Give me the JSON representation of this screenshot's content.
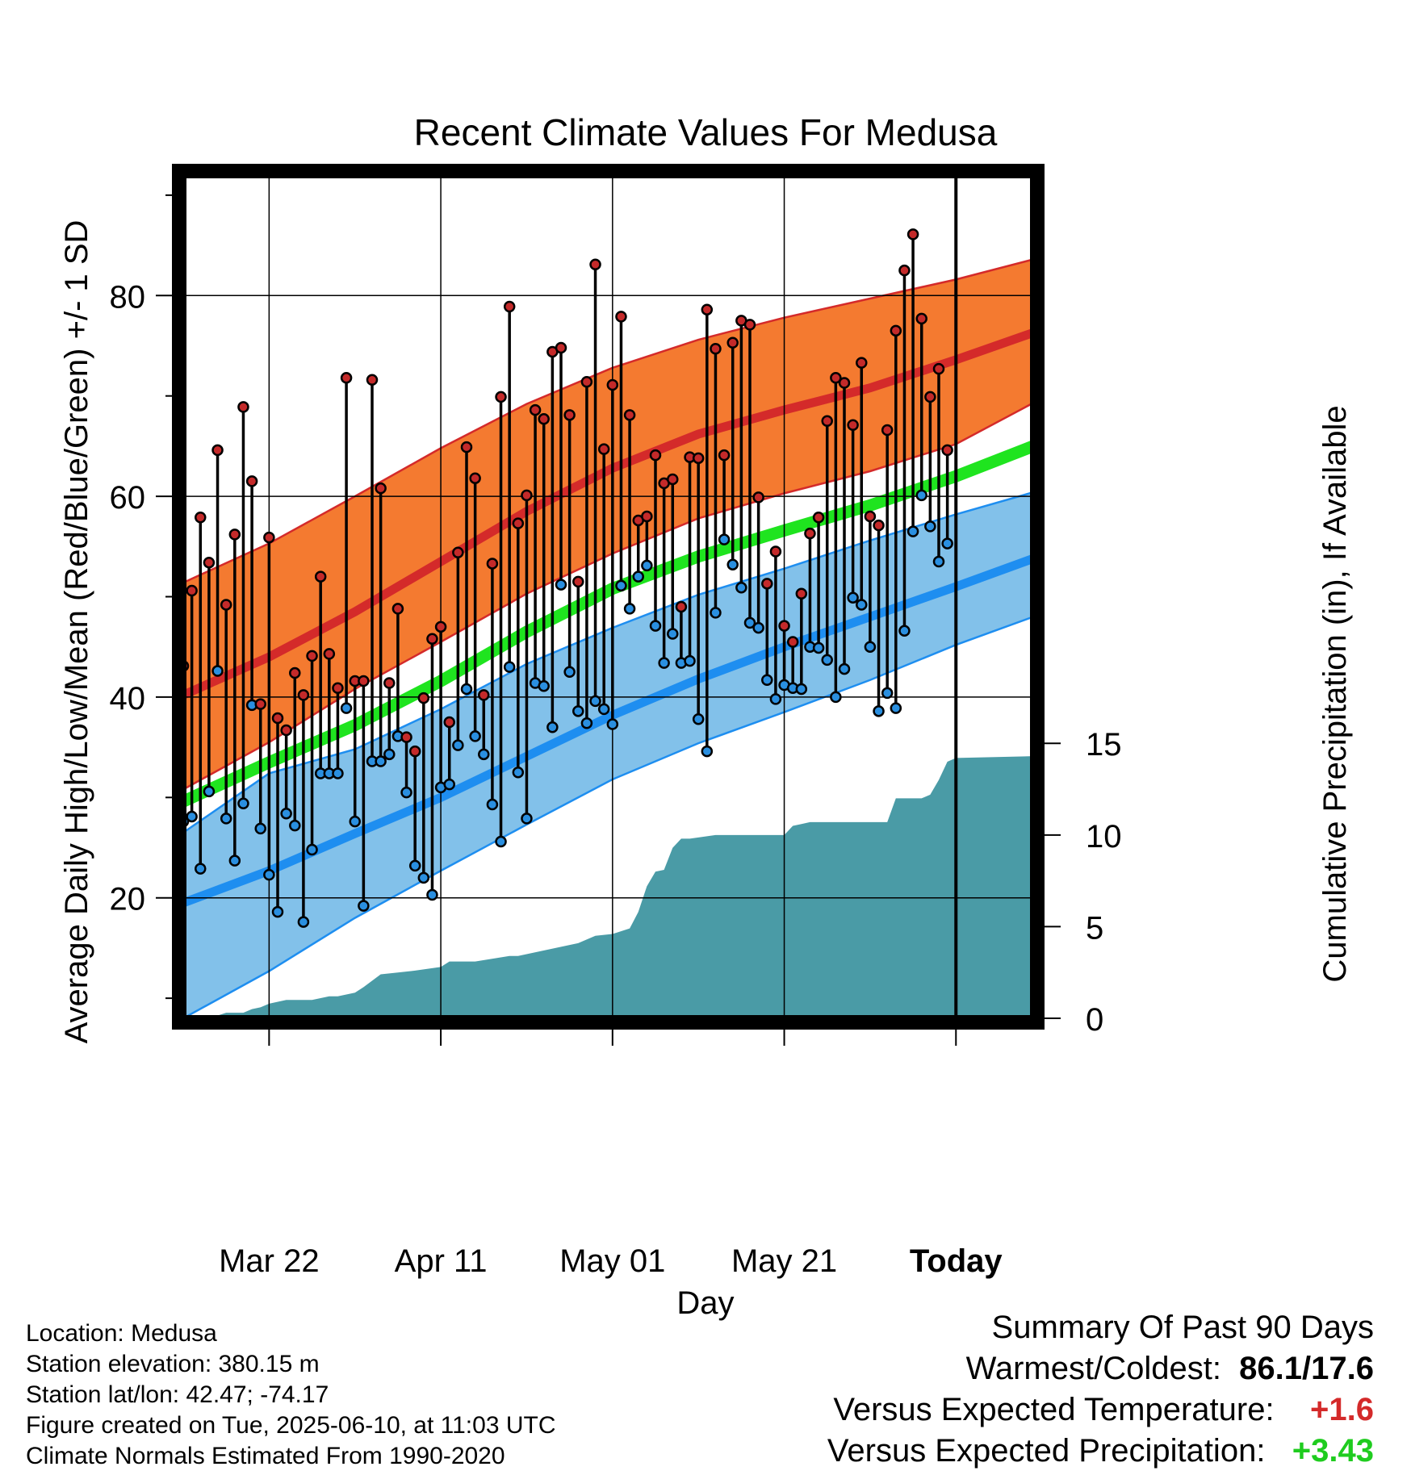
{
  "chart_data": {
    "type": "line",
    "title": "Recent Climate Values For Medusa",
    "xlabel": "Day",
    "ylabel": "Average Daily High/Low/Mean (Red/Blue/Green) +/- 1 SD",
    "ylabel2": "Cumulative Precipitation (in), If Available",
    "x_ticks": [
      "Mar 22",
      "Apr 11",
      "May 01",
      "May 21",
      "Today"
    ],
    "y_ticks": [
      "20",
      "40",
      "60",
      "80"
    ],
    "y2_ticks": [
      "0",
      "5",
      "10",
      "15"
    ],
    "ylim": [
      8,
      92
    ],
    "y2lim": [
      0,
      46
    ],
    "xlim": [
      "2025-03-12",
      "2025-06-19"
    ],
    "today": "2025-06-10",
    "period_label": [
      "90",
      "Days"
    ],
    "colors": {
      "high_band": "#f47a30",
      "high_mean": "#d42a2a",
      "low_band": "#82c1ea",
      "low_mean": "#1e8ef0",
      "mean": "#1fe41f",
      "precip": "#4a9ba6",
      "high_dot": "#c42a2a",
      "low_dot": "#2a8fe0"
    },
    "normals": {
      "dates": [
        "2025-03-12",
        "2025-03-22",
        "2025-04-01",
        "2025-04-11",
        "2025-04-21",
        "2025-05-01",
        "2025-05-11",
        "2025-05-21",
        "2025-05-31",
        "2025-06-10",
        "2025-06-19"
      ],
      "high_mean": [
        40.2,
        44.0,
        48.5,
        53.5,
        58.5,
        62.8,
        66.2,
        68.6,
        70.8,
        73.6,
        76.3
      ],
      "high_upper": [
        51.4,
        55.3,
        60.0,
        64.8,
        69.2,
        72.8,
        75.6,
        77.8,
        79.7,
        81.6,
        83.6
      ],
      "high_lower": [
        30.8,
        35.5,
        40.8,
        45.5,
        50.3,
        54.3,
        57.8,
        60.3,
        62.5,
        65.2,
        69.3
      ],
      "mean": [
        29.6,
        33.5,
        37.2,
        41.6,
        46.5,
        50.8,
        54.0,
        56.6,
        59.1,
        62.0,
        65.0
      ],
      "low_mean": [
        19.5,
        22.7,
        26.4,
        30.0,
        34.1,
        38.2,
        41.8,
        45.0,
        48.0,
        51.0,
        53.8
      ],
      "low_upper": [
        26.5,
        32.4,
        34.8,
        38.8,
        43.3,
        46.9,
        50.2,
        52.8,
        55.6,
        58.2,
        60.4
      ],
      "low_lower": [
        8.0,
        12.7,
        18.0,
        22.7,
        27.3,
        31.8,
        35.4,
        38.5,
        41.7,
        45.2,
        48.0
      ]
    },
    "series": [
      {
        "name": "High",
        "start_date": "2025-03-12",
        "values": [
          43.1,
          50.6,
          57.9,
          53.4,
          64.6,
          49.2,
          56.2,
          68.9,
          61.5,
          39.3,
          55.9,
          37.9,
          36.7,
          42.4,
          40.2,
          44.1,
          52.0,
          44.3,
          40.9,
          71.8,
          41.6,
          41.6,
          71.6,
          60.8,
          41.4,
          48.8,
          36.0,
          34.6,
          39.9,
          45.8,
          47.0,
          37.5,
          54.4,
          64.9,
          61.8,
          40.2,
          53.3,
          69.9,
          78.9,
          57.3,
          60.1,
          68.6,
          67.7,
          74.4,
          74.8,
          68.1,
          51.5,
          71.4,
          83.1,
          64.7,
          71.1,
          77.9,
          68.1,
          57.6,
          58.0,
          64.1,
          61.3,
          61.7,
          49.0,
          63.9,
          63.8,
          78.6,
          74.7,
          64.1,
          75.3,
          77.5,
          77.1,
          59.9,
          51.3,
          54.5,
          47.1,
          45.5,
          50.3,
          56.3,
          57.9,
          67.5,
          71.8,
          71.3,
          67.1,
          73.3,
          58.0,
          57.1,
          66.6,
          76.5,
          82.5,
          86.1,
          77.7,
          69.9,
          72.7,
          64.6
        ]
      },
      {
        "name": "Low",
        "start_date": "2025-03-12",
        "values": [
          27.6,
          28.1,
          22.9,
          30.6,
          42.6,
          27.9,
          23.7,
          29.4,
          39.2,
          26.9,
          22.3,
          18.6,
          28.4,
          27.2,
          17.6,
          24.8,
          32.4,
          32.4,
          32.4,
          38.9,
          27.6,
          19.2,
          33.6,
          33.6,
          34.3,
          36.1,
          30.5,
          23.2,
          22.0,
          20.3,
          31.0,
          31.3,
          35.2,
          40.8,
          36.1,
          34.3,
          29.3,
          25.6,
          43.0,
          32.5,
          27.9,
          41.4,
          41.1,
          37.0,
          51.2,
          42.5,
          38.6,
          37.4,
          39.6,
          38.8,
          37.3,
          51.1,
          48.8,
          52.0,
          53.1,
          47.1,
          43.4,
          46.3,
          43.4,
          43.6,
          37.8,
          34.6,
          48.4,
          55.7,
          53.2,
          50.9,
          47.4,
          46.9,
          41.7,
          39.8,
          41.2,
          40.9,
          40.8,
          45.0,
          44.9,
          43.7,
          40.0,
          42.8,
          49.9,
          49.2,
          45.0,
          38.6,
          40.4,
          38.9,
          46.6,
          56.5,
          60.1,
          57.0,
          53.5,
          55.3
        ]
      }
    ],
    "precip_cumulative": {
      "dates": [
        "2025-03-12",
        "2025-03-15",
        "2025-03-17",
        "2025-03-18",
        "2025-03-19",
        "2025-03-20",
        "2025-03-21",
        "2025-03-22",
        "2025-03-24",
        "2025-03-27",
        "2025-03-29",
        "2025-03-30",
        "2025-04-01",
        "2025-04-02",
        "2025-04-04",
        "2025-04-06",
        "2025-04-08",
        "2025-04-11",
        "2025-04-12",
        "2025-04-15",
        "2025-04-19",
        "2025-04-20",
        "2025-04-26",
        "2025-04-27",
        "2025-04-29",
        "2025-05-01",
        "2025-05-03",
        "2025-05-04",
        "2025-05-05",
        "2025-05-06",
        "2025-05-07",
        "2025-05-08",
        "2025-05-09",
        "2025-05-10",
        "2025-05-13",
        "2025-05-21",
        "2025-05-22",
        "2025-05-23",
        "2025-05-24",
        "2025-06-02",
        "2025-06-03",
        "2025-06-06",
        "2025-06-07",
        "2025-06-08",
        "2025-06-09",
        "2025-06-10",
        "2025-06-19"
      ],
      "values": [
        0.0,
        0.0,
        0.3,
        0.3,
        0.3,
        0.5,
        0.6,
        0.8,
        1.0,
        1.0,
        1.2,
        1.2,
        1.4,
        1.7,
        2.4,
        2.5,
        2.6,
        2.8,
        3.1,
        3.1,
        3.4,
        3.4,
        4.0,
        4.1,
        4.5,
        4.6,
        4.9,
        5.8,
        7.2,
        8.0,
        8.1,
        9.3,
        9.8,
        9.8,
        10.0,
        10.0,
        10.5,
        10.6,
        10.7,
        10.7,
        12.0,
        12.0,
        12.2,
        13.0,
        14.0,
        14.2,
        14.3
      ]
    }
  },
  "footer": {
    "location": "Location: Medusa",
    "elevation": "Station elevation: 380.15 m",
    "latlon": "Station lat/lon: 42.47; -74.17",
    "created": "Figure created on Tue, 2025-06-10, at 11:03 UTC",
    "normals_note": "Climate Normals Estimated From 1990-2020"
  },
  "summary": {
    "heading": "Summary Of Past 90 Days",
    "warm_cold_label": "Warmest/Coldest:",
    "warm_cold_value": "86.1/17.6",
    "temp_label": "Versus Expected Temperature:",
    "temp_value": "+1.6",
    "precip_label": "Versus Expected Precipitation:",
    "precip_value": "+3.43"
  }
}
